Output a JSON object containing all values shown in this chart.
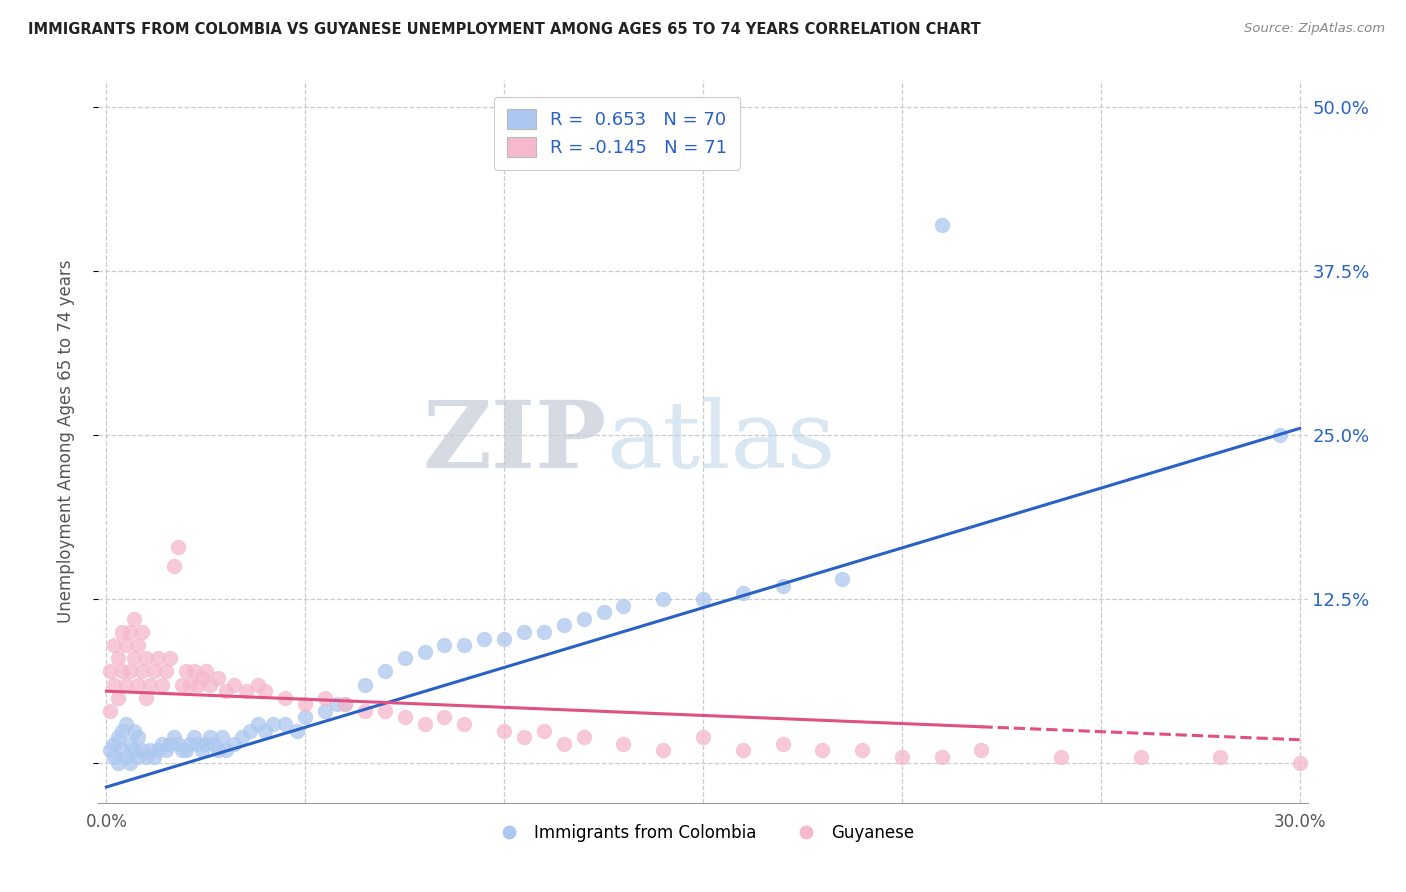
{
  "title": "IMMIGRANTS FROM COLOMBIA VS GUYANESE UNEMPLOYMENT AMONG AGES 65 TO 74 YEARS CORRELATION CHART",
  "source": "Source: ZipAtlas.com",
  "ylabel": "Unemployment Among Ages 65 to 74 years",
  "xlim": [
    -0.002,
    0.302
  ],
  "ylim": [
    -0.03,
    0.52
  ],
  "yticks": [
    0.0,
    0.125,
    0.25,
    0.375,
    0.5
  ],
  "ytick_labels_right": [
    "",
    "12.5%",
    "25.0%",
    "37.5%",
    "50.0%"
  ],
  "xticks": [
    0.0,
    0.05,
    0.1,
    0.15,
    0.2,
    0.25,
    0.3
  ],
  "xtick_labels": [
    "0.0%",
    "",
    "",
    "",
    "",
    "",
    "30.0%"
  ],
  "colombia_color": "#adc8f0",
  "guyanese_color": "#f5b8cc",
  "colombia_line_color": "#2962c4",
  "guyanese_line_color": "#e05080",
  "R_colombia": 0.653,
  "N_colombia": 70,
  "R_guyanese": -0.145,
  "N_guyanese": 71,
  "legend_label_colombia": "Immigrants from Colombia",
  "legend_label_guyanese": "Guyanese",
  "watermark_zip": "ZIP",
  "watermark_atlas": "atlas",
  "colombia_x": [
    0.001,
    0.002,
    0.002,
    0.003,
    0.003,
    0.004,
    0.004,
    0.005,
    0.005,
    0.006,
    0.006,
    0.007,
    0.007,
    0.008,
    0.008,
    0.009,
    0.01,
    0.011,
    0.012,
    0.013,
    0.014,
    0.015,
    0.016,
    0.017,
    0.018,
    0.019,
    0.02,
    0.021,
    0.022,
    0.023,
    0.024,
    0.025,
    0.026,
    0.027,
    0.028,
    0.029,
    0.03,
    0.032,
    0.034,
    0.036,
    0.038,
    0.04,
    0.042,
    0.045,
    0.048,
    0.05,
    0.055,
    0.058,
    0.06,
    0.065,
    0.07,
    0.075,
    0.08,
    0.085,
    0.09,
    0.095,
    0.1,
    0.105,
    0.11,
    0.115,
    0.12,
    0.125,
    0.13,
    0.14,
    0.15,
    0.16,
    0.17,
    0.185,
    0.21,
    0.295
  ],
  "colombia_y": [
    0.01,
    0.005,
    0.015,
    0.0,
    0.02,
    0.01,
    0.025,
    0.005,
    0.03,
    0.015,
    0.0,
    0.01,
    0.025,
    0.005,
    0.02,
    0.01,
    0.005,
    0.01,
    0.005,
    0.01,
    0.015,
    0.01,
    0.015,
    0.02,
    0.015,
    0.01,
    0.01,
    0.015,
    0.02,
    0.015,
    0.01,
    0.015,
    0.02,
    0.015,
    0.01,
    0.02,
    0.01,
    0.015,
    0.02,
    0.025,
    0.03,
    0.025,
    0.03,
    0.03,
    0.025,
    0.035,
    0.04,
    0.045,
    0.045,
    0.06,
    0.07,
    0.08,
    0.085,
    0.09,
    0.09,
    0.095,
    0.095,
    0.1,
    0.1,
    0.105,
    0.11,
    0.115,
    0.12,
    0.125,
    0.125,
    0.13,
    0.135,
    0.14,
    0.41,
    0.25
  ],
  "guyanese_x": [
    0.001,
    0.001,
    0.002,
    0.002,
    0.003,
    0.003,
    0.004,
    0.004,
    0.005,
    0.005,
    0.006,
    0.006,
    0.007,
    0.007,
    0.008,
    0.008,
    0.009,
    0.009,
    0.01,
    0.01,
    0.011,
    0.012,
    0.013,
    0.014,
    0.015,
    0.016,
    0.017,
    0.018,
    0.019,
    0.02,
    0.021,
    0.022,
    0.023,
    0.024,
    0.025,
    0.026,
    0.028,
    0.03,
    0.032,
    0.035,
    0.038,
    0.04,
    0.045,
    0.05,
    0.055,
    0.06,
    0.065,
    0.07,
    0.075,
    0.08,
    0.085,
    0.09,
    0.1,
    0.105,
    0.11,
    0.115,
    0.12,
    0.13,
    0.14,
    0.15,
    0.16,
    0.17,
    0.18,
    0.19,
    0.2,
    0.21,
    0.22,
    0.24,
    0.26,
    0.28,
    0.3
  ],
  "guyanese_y": [
    0.04,
    0.07,
    0.06,
    0.09,
    0.05,
    0.08,
    0.07,
    0.1,
    0.06,
    0.09,
    0.07,
    0.1,
    0.08,
    0.11,
    0.06,
    0.09,
    0.07,
    0.1,
    0.05,
    0.08,
    0.06,
    0.07,
    0.08,
    0.06,
    0.07,
    0.08,
    0.15,
    0.165,
    0.06,
    0.07,
    0.06,
    0.07,
    0.06,
    0.065,
    0.07,
    0.06,
    0.065,
    0.055,
    0.06,
    0.055,
    0.06,
    0.055,
    0.05,
    0.045,
    0.05,
    0.045,
    0.04,
    0.04,
    0.035,
    0.03,
    0.035,
    0.03,
    0.025,
    0.02,
    0.025,
    0.015,
    0.02,
    0.015,
    0.01,
    0.02,
    0.01,
    0.015,
    0.01,
    0.01,
    0.005,
    0.005,
    0.01,
    0.005,
    0.005,
    0.005,
    0.0
  ]
}
